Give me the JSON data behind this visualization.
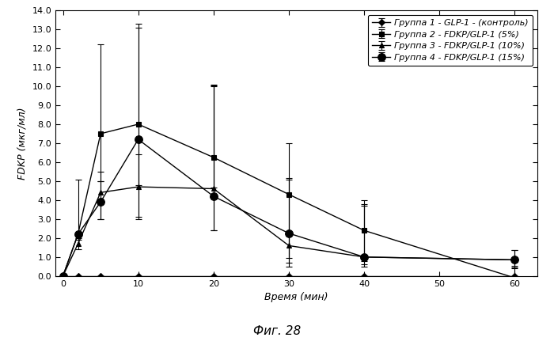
{
  "title": "",
  "xlabel": "Время (мин)",
  "ylabel": "FDKP (мкг/мл)",
  "caption": "Фиг. 28",
  "xlim": [
    -1,
    63
  ],
  "ylim": [
    0.0,
    14.0
  ],
  "yticks": [
    0.0,
    1.0,
    2.0,
    3.0,
    4.0,
    5.0,
    6.0,
    7.0,
    8.0,
    9.0,
    10.0,
    11.0,
    12.0,
    13.0,
    14.0
  ],
  "xticks": [
    0,
    10,
    20,
    30,
    40,
    50,
    60
  ],
  "groups": [
    {
      "label": "Группа 1 - GLP-1 - (контроль)",
      "x": [
        0,
        2,
        5,
        10,
        20,
        30,
        40,
        60
      ],
      "y": [
        0.0,
        0.0,
        0.0,
        0.0,
        0.0,
        0.0,
        0.0,
        0.0
      ],
      "yerr_low": [
        0.0,
        0.0,
        0.0,
        0.0,
        0.0,
        0.0,
        0.0,
        0.0
      ],
      "yerr_high": [
        0.0,
        0.0,
        0.0,
        0.0,
        0.0,
        0.0,
        0.0,
        0.0
      ],
      "marker": "D",
      "markersize": 4,
      "markerfacecolor": "#000000",
      "color": "#000000",
      "linestyle": "-"
    },
    {
      "label": "Группа 2 - FDKP/GLP-1 (5%)",
      "x": [
        0,
        2,
        5,
        10,
        20,
        30,
        40,
        60
      ],
      "y": [
        0.0,
        2.2,
        7.5,
        8.0,
        6.25,
        4.3,
        2.4,
        -0.1
      ],
      "yerr_low": [
        0.0,
        0.0,
        2.5,
        3.2,
        1.6,
        3.6,
        1.6,
        0.4
      ],
      "yerr_high": [
        0.0,
        0.0,
        4.7,
        5.1,
        3.8,
        2.7,
        1.6,
        0.5
      ],
      "marker": "s",
      "markersize": 5,
      "markerfacecolor": "#000000",
      "color": "#000000",
      "linestyle": "-"
    },
    {
      "label": "Группа 3 - FDKP/GLP-1 (10%)",
      "x": [
        0,
        2,
        5,
        10,
        20,
        30,
        40,
        60
      ],
      "y": [
        0.0,
        1.7,
        4.4,
        4.7,
        4.6,
        1.6,
        1.0,
        0.85
      ],
      "yerr_low": [
        0.0,
        0.3,
        1.4,
        1.7,
        2.2,
        1.1,
        0.5,
        0.3
      ],
      "yerr_high": [
        0.0,
        0.3,
        1.1,
        1.7,
        5.4,
        3.5,
        2.7,
        0.5
      ],
      "marker": "^",
      "markersize": 5,
      "markerfacecolor": "#000000",
      "color": "#000000",
      "linestyle": "-"
    },
    {
      "label": "Группа 4 - FDKP/GLP-1 (15%)",
      "x": [
        0,
        2,
        5,
        10,
        20,
        30,
        40,
        60
      ],
      "y": [
        0.0,
        2.2,
        3.9,
        7.2,
        4.2,
        2.25,
        1.0,
        0.85
      ],
      "yerr_low": [
        0.0,
        0.3,
        0.9,
        4.1,
        1.8,
        1.3,
        0.4,
        0.4
      ],
      "yerr_high": [
        0.0,
        2.9,
        1.1,
        6.1,
        5.9,
        2.9,
        2.8,
        0.5
      ],
      "marker": "o",
      "markersize": 7,
      "markerfacecolor": "#000000",
      "color": "#000000",
      "linestyle": "-"
    }
  ],
  "background_color": "#ffffff",
  "legend_loc": "upper right",
  "legend_fontsize": 8.0,
  "axis_label_fontsize": 9,
  "tick_fontsize": 8,
  "caption_fontsize": 11,
  "linewidth": 1.0,
  "capsize": 3,
  "elinewidth": 0.8,
  "capthick": 0.8
}
